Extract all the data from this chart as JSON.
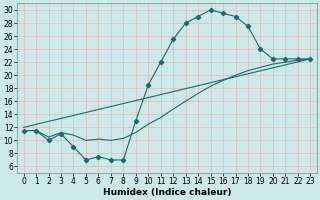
{
  "title": "",
  "xlabel": "Humidex (Indice chaleur)",
  "bg_color": "#cce8e8",
  "line_color": "#1a6b6b",
  "xlim": [
    -0.5,
    23.5
  ],
  "ylim": [
    5.0,
    31.0
  ],
  "yticks": [
    6,
    8,
    10,
    12,
    14,
    16,
    18,
    20,
    22,
    24,
    26,
    28,
    30
  ],
  "xticks": [
    0,
    1,
    2,
    3,
    4,
    5,
    6,
    7,
    8,
    9,
    10,
    11,
    12,
    13,
    14,
    15,
    16,
    17,
    18,
    19,
    20,
    21,
    22,
    23
  ],
  "line1_x": [
    0,
    1,
    2,
    3,
    4,
    5,
    6,
    7,
    8,
    9,
    10,
    11,
    12,
    13,
    14,
    15,
    16,
    17,
    18,
    19,
    20,
    21,
    22,
    23
  ],
  "line1_y": [
    11.5,
    11.5,
    10.0,
    11.0,
    9.0,
    7.0,
    7.5,
    7.0,
    7.0,
    13.0,
    18.5,
    22.0,
    25.5,
    28.0,
    29.0,
    30.0,
    29.5,
    29.0,
    27.5,
    24.0,
    22.5,
    22.5,
    22.5,
    22.5
  ],
  "line2_x": [
    0,
    1,
    2,
    3,
    4,
    5,
    6,
    7,
    8,
    9,
    10,
    11,
    12,
    13,
    14,
    15,
    16,
    17,
    18,
    19,
    20,
    21,
    22,
    23
  ],
  "line2_y": [
    11.5,
    11.5,
    10.5,
    11.2,
    10.8,
    10.0,
    10.2,
    10.0,
    10.3,
    11.2,
    12.5,
    13.5,
    14.8,
    16.0,
    17.2,
    18.3,
    19.2,
    20.0,
    20.7,
    21.2,
    21.7,
    22.0,
    22.3,
    22.5
  ],
  "line3_x": [
    0,
    23
  ],
  "line3_y": [
    12.0,
    22.5
  ],
  "grid_color": "#e8b8b8",
  "marker": "D",
  "marker_size": 2.2,
  "lw": 0.8,
  "tick_fontsize": 5.5,
  "xlabel_fontsize": 6.5
}
